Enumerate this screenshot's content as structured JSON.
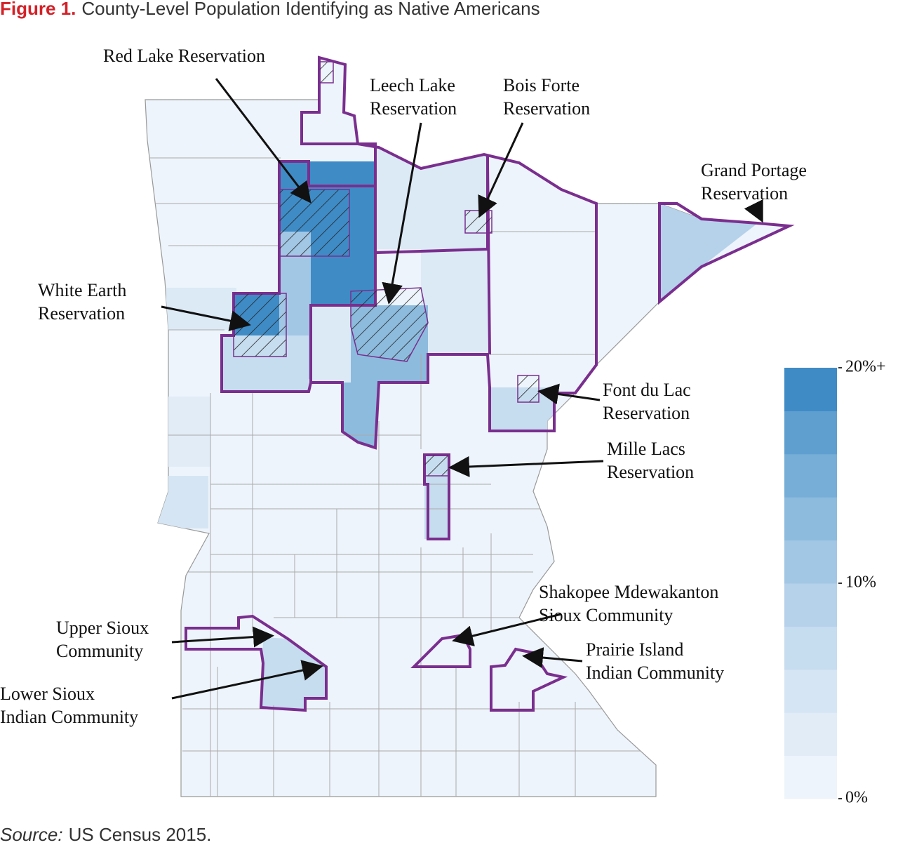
{
  "title": {
    "label": "Figure 1.",
    "text": "County-Level Population Identifying as Native Americans"
  },
  "annotations": [
    {
      "lines": [
        "Red Lake Reservation"
      ]
    },
    {
      "lines": [
        "Leech Lake",
        "Reservation"
      ]
    },
    {
      "lines": [
        "Bois Forte",
        "Reservation"
      ]
    },
    {
      "lines": [
        "Grand Portage",
        "Reservation"
      ]
    },
    {
      "lines": [
        "White Earth",
        "Reservation"
      ]
    },
    {
      "lines": [
        "Font du Lac",
        "Reservation"
      ]
    },
    {
      "lines": [
        "Mille Lacs",
        "Reservation"
      ]
    },
    {
      "lines": [
        "Shakopee Mdewakanton",
        "Sioux Community"
      ]
    },
    {
      "lines": [
        "Prairie Island",
        "Indian Community"
      ]
    },
    {
      "lines": [
        "Upper Sioux",
        "Community"
      ]
    },
    {
      "lines": [
        "Lower Sioux",
        "Indian Community"
      ]
    }
  ],
  "legend": {
    "lim": [
      0,
      20
    ],
    "ticks": [
      {
        "value": 20,
        "label": "20%+"
      },
      {
        "value": 10,
        "label": "10%"
      },
      {
        "value": 0,
        "label": "0%"
      }
    ],
    "colors": [
      "#edf4fb",
      "#e1ecf7",
      "#d5e5f3",
      "#c6dcef",
      "#b5d2ea",
      "#a2c7e4",
      "#8dbbde",
      "#77aed7",
      "#5f9fd0",
      "#3f8bc6"
    ]
  },
  "source": {
    "label": "Source:",
    "text": "US Census 2015."
  }
}
